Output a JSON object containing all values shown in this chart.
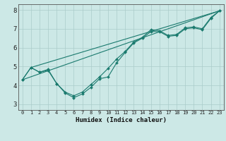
{
  "xlabel": "Humidex (Indice chaleur)",
  "xlim": [
    -0.5,
    23.5
  ],
  "ylim": [
    2.7,
    8.3
  ],
  "xticks": [
    0,
    1,
    2,
    3,
    4,
    5,
    6,
    7,
    8,
    9,
    10,
    11,
    12,
    13,
    14,
    15,
    16,
    17,
    18,
    19,
    20,
    21,
    22,
    23
  ],
  "yticks": [
    3,
    4,
    5,
    6,
    7,
    8
  ],
  "background_color": "#cce8e6",
  "grid_color": "#aaccca",
  "line_color": "#1a7a6e",
  "series": [
    {
      "x": [
        0,
        1,
        2,
        3,
        4,
        5,
        6,
        7,
        8,
        9,
        10,
        11,
        12,
        13,
        14,
        15,
        16,
        17,
        18,
        19,
        20,
        21,
        22,
        23
      ],
      "y": [
        4.3,
        4.95,
        4.7,
        4.8,
        4.1,
        3.6,
        3.35,
        3.55,
        3.9,
        4.35,
        4.45,
        5.2,
        5.75,
        6.25,
        6.5,
        6.85,
        6.85,
        6.6,
        6.65,
        7.0,
        7.05,
        6.95,
        7.55,
        7.95
      ]
    },
    {
      "x": [
        0,
        1,
        2,
        3,
        4,
        5,
        6,
        7,
        8,
        9,
        10,
        11,
        12,
        13,
        14,
        15,
        16,
        17,
        18,
        19,
        20,
        21,
        22,
        23
      ],
      "y": [
        4.3,
        4.95,
        4.7,
        4.85,
        4.1,
        3.65,
        3.45,
        3.65,
        4.05,
        4.45,
        4.9,
        5.4,
        5.8,
        6.3,
        6.55,
        6.95,
        6.9,
        6.65,
        6.7,
        7.05,
        7.1,
        7.0,
        7.6,
        7.95
      ]
    },
    {
      "x": [
        0,
        23
      ],
      "y": [
        4.3,
        7.95
      ]
    },
    {
      "x": [
        1,
        23
      ],
      "y": [
        4.95,
        7.95
      ]
    }
  ]
}
